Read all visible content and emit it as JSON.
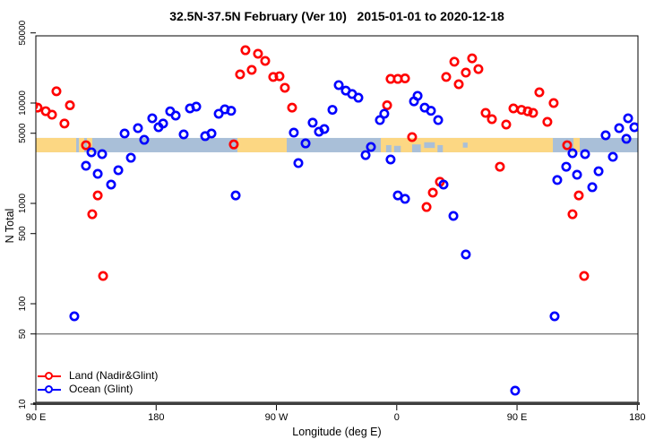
{
  "title": "32.5N-37.5N February (Ver 10)   2015-01-01 to 2020-12-18",
  "legend": {
    "items": [
      {
        "label": "Land (Nadir&Glint)",
        "color": "#ff0000"
      },
      {
        "label": "Ocean (Glint)",
        "color": "#0000ff"
      }
    ]
  },
  "chart_data": {
    "type": "scatter",
    "title": "32.5N-37.5N February (Ver 10)   2015-01-01 to 2020-12-18",
    "xlabel": "Longitude (deg E)",
    "ylabel": "N Total",
    "x_axis": {
      "note": "longitude axis starts at 90E and increases eastward 450 degrees (wraps past 180)",
      "tick_positions_deg": [
        90,
        180,
        270,
        360,
        450,
        540
      ],
      "tick_labels": [
        "90 E",
        "180",
        "90 W",
        "0",
        "90 E",
        "180"
      ],
      "range_deg": [
        90,
        540.5
      ]
    },
    "y_axis": {
      "scale": "log",
      "ticks": [
        10,
        50,
        100,
        500,
        1000,
        5000,
        10000,
        50000
      ],
      "range": [
        10,
        50000
      ]
    },
    "threshold_line": {
      "value": 50,
      "color": "#7f7f7f"
    },
    "map_band": {
      "note": "land/ocean strip map of the 32.5N-37.5N latitude band drawn across the plot",
      "value_range": [
        3230,
        4490
      ],
      "ocean_color": "#a9bfd8",
      "land_color": "#fcd783",
      "land_segments_deg": [
        [
          90,
          120.2
        ],
        [
          122.2,
          126.2
        ],
        [
          128.2,
          132.2
        ],
        [
          240.8,
          277.7
        ],
        [
          348.1,
          476.8
        ],
        [
          492.2,
          496.9
        ]
      ],
      "ocean_patches": [
        {
          "from": 352.0,
          "to": 356.0,
          "pos": "bottom",
          "frac": 0.5
        },
        {
          "from": 358.0,
          "to": 363.0,
          "pos": "bottom",
          "frac": 0.45
        },
        {
          "from": 371.5,
          "to": 378.0,
          "pos": "bottom",
          "frac": 0.55
        },
        {
          "from": 380.5,
          "to": 388.5,
          "pos": "middle",
          "frac": 0.4
        },
        {
          "from": 390.5,
          "to": 394.5,
          "pos": "bottom",
          "frac": 0.5
        },
        {
          "from": 409.5,
          "to": 413.0,
          "pos": "middle",
          "frac": 0.35
        }
      ]
    },
    "series": [
      {
        "name": "Land (Nadir&Glint)",
        "color": "#ff0000",
        "points": [
          [
            88.0,
            9400
          ],
          [
            91.3,
            9000
          ],
          [
            97.4,
            8300
          ],
          [
            102.1,
            7650
          ],
          [
            105.4,
            13100
          ],
          [
            111.4,
            6250
          ],
          [
            115.5,
            9500
          ],
          [
            127.5,
            3800
          ],
          [
            136.3,
            1200
          ],
          [
            132.2,
            780
          ],
          [
            140.3,
            189
          ],
          [
            238.1,
            3870
          ],
          [
            242.8,
            19300
          ],
          [
            246.8,
            33600
          ],
          [
            251.5,
            21400
          ],
          [
            256.2,
            31000
          ],
          [
            261.6,
            26300
          ],
          [
            267.6,
            18200
          ],
          [
            272.3,
            18500
          ],
          [
            276.3,
            14200
          ],
          [
            281.7,
            9000
          ],
          [
            352.8,
            9500
          ],
          [
            355.4,
            17400
          ],
          [
            360.8,
            17400
          ],
          [
            366.2,
            17600
          ],
          [
            371.5,
            4580
          ],
          [
            382.3,
            920
          ],
          [
            387.0,
            1280
          ],
          [
            392.3,
            1640
          ],
          [
            397.0,
            18200
          ],
          [
            403.1,
            25800
          ],
          [
            406.4,
            15400
          ],
          [
            411.7,
            20100
          ],
          [
            416.4,
            27900
          ],
          [
            421.1,
            21800
          ],
          [
            426.5,
            7980
          ],
          [
            431.2,
            6910
          ],
          [
            437.2,
            2320
          ],
          [
            441.9,
            6110
          ],
          [
            447.3,
            8840
          ],
          [
            453.3,
            8560
          ],
          [
            458.0,
            8270
          ],
          [
            462.0,
            7980
          ],
          [
            466.7,
            12800
          ],
          [
            472.7,
            6490
          ],
          [
            477.4,
            10000
          ],
          [
            487.5,
            3800
          ],
          [
            491.5,
            780
          ],
          [
            496.2,
            1200
          ],
          [
            500.2,
            189
          ]
        ]
      },
      {
        "name": "Ocean (Glint)",
        "color": "#0000ff",
        "points": [
          [
            118.8,
            75
          ],
          [
            127.5,
            2370
          ],
          [
            131.6,
            3230
          ],
          [
            136.3,
            1970
          ],
          [
            139.6,
            3100
          ],
          [
            146.3,
            1540
          ],
          [
            151.7,
            2140
          ],
          [
            156.4,
            4970
          ],
          [
            161.1,
            2850
          ],
          [
            166.4,
            5620
          ],
          [
            171.1,
            4300
          ],
          [
            177.1,
            7050
          ],
          [
            181.8,
            5740
          ],
          [
            185.2,
            6250
          ],
          [
            190.5,
            8270
          ],
          [
            194.6,
            7500
          ],
          [
            200.6,
            4870
          ],
          [
            205.3,
            8840
          ],
          [
            210.0,
            9210
          ],
          [
            216.7,
            4680
          ],
          [
            221.4,
            4970
          ],
          [
            226.8,
            7820
          ],
          [
            231.4,
            8650
          ],
          [
            236.1,
            8370
          ],
          [
            239.5,
            1200
          ],
          [
            283.0,
            5070
          ],
          [
            286.4,
            2520
          ],
          [
            291.8,
            3960
          ],
          [
            297.1,
            6370
          ],
          [
            301.8,
            5180
          ],
          [
            305.8,
            5510
          ],
          [
            311.9,
            8560
          ],
          [
            316.6,
            15100
          ],
          [
            321.9,
            13300
          ],
          [
            326.6,
            12300
          ],
          [
            331.3,
            11300
          ],
          [
            336.7,
            3030
          ],
          [
            340.7,
            3650
          ],
          [
            347.4,
            6760
          ],
          [
            350.7,
            7820
          ],
          [
            355.4,
            2740
          ],
          [
            360.8,
            1200
          ],
          [
            366.2,
            1110
          ],
          [
            372.9,
            10400
          ],
          [
            375.6,
            11800
          ],
          [
            380.9,
            9000
          ],
          [
            385.6,
            8370
          ],
          [
            391.0,
            6760
          ],
          [
            395.0,
            1540
          ],
          [
            402.4,
            750
          ],
          [
            411.7,
            310
          ],
          [
            448.6,
            13.6
          ],
          [
            478.1,
            75
          ],
          [
            480.1,
            1710
          ],
          [
            486.8,
            2320
          ],
          [
            491.5,
            3160
          ],
          [
            494.9,
            1930
          ],
          [
            500.9,
            3100
          ],
          [
            506.3,
            1450
          ],
          [
            511.0,
            2090
          ],
          [
            516.3,
            4770
          ],
          [
            521.7,
            2910
          ],
          [
            526.4,
            5620
          ],
          [
            531.8,
            4400
          ],
          [
            533.1,
            7050
          ],
          [
            537.8,
            5740
          ]
        ]
      }
    ]
  }
}
